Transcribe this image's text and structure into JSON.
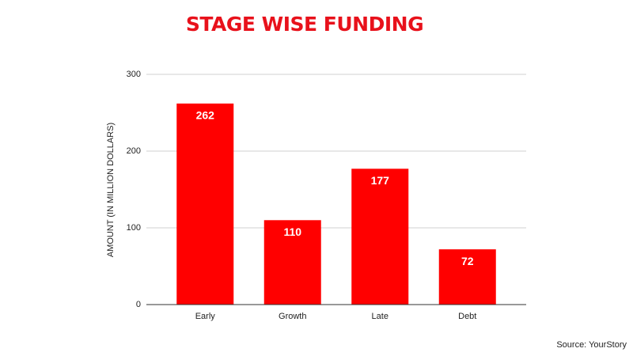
{
  "chart_data": {
    "type": "bar",
    "title": "STAGE WISE FUNDING",
    "y_label": "AMOUNT (IN MILLION DOLLARS)",
    "source": "Source: YourStory",
    "categories": [
      "Early",
      "Growth",
      "Late",
      "Debt"
    ],
    "values": [
      262,
      110,
      177,
      72
    ],
    "color": "#ff0000",
    "ylim": [
      0,
      300
    ],
    "yticks": [
      0,
      100,
      200,
      300
    ],
    "grid": true
  }
}
